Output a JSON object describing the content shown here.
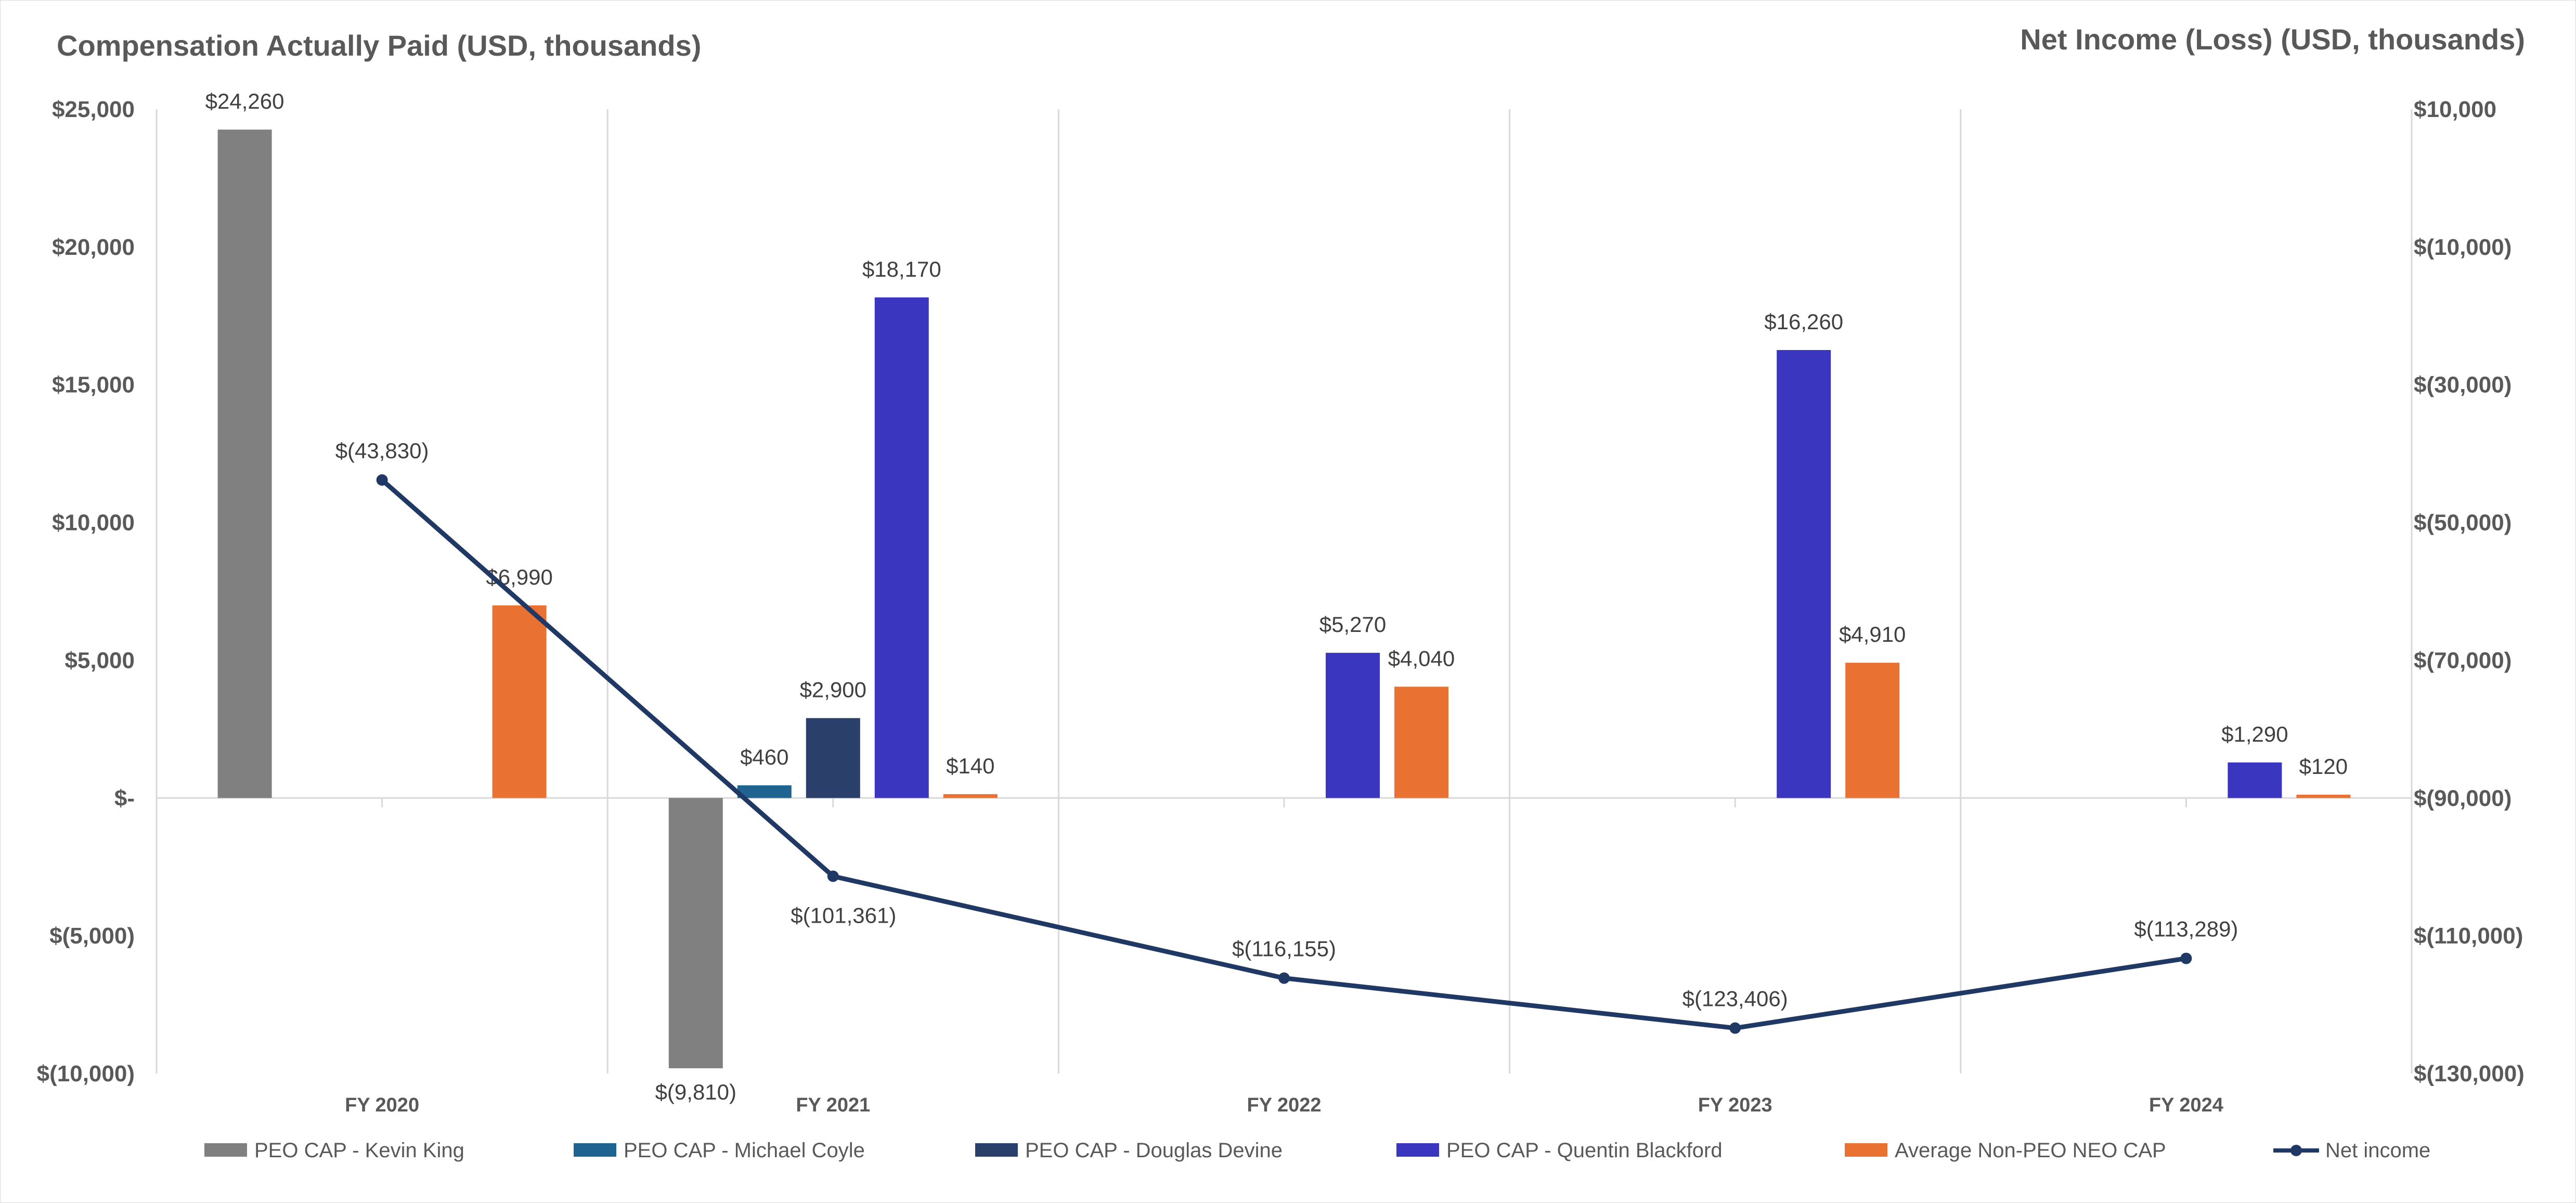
{
  "chart_data": {
    "type": "bar",
    "title_left": "Compensation Actually Paid (USD, thousands)",
    "title_right": "Net Income (Loss) (USD, thousands)",
    "categories": [
      "FY 2020",
      "FY 2021",
      "FY 2022",
      "FY 2023",
      "FY 2024"
    ],
    "ylim": [
      -10000,
      25000
    ],
    "y_ticks": [
      25000,
      20000,
      15000,
      10000,
      5000,
      0,
      -5000,
      -10000
    ],
    "y_tick_labels": [
      "$25,000",
      "$20,000",
      "$15,000",
      "$10,000",
      "$5,000",
      "$-",
      "$(5,000)",
      "$(10,000)"
    ],
    "y2lim": [
      -130000,
      10000
    ],
    "y2_ticks": [
      10000,
      -10000,
      -30000,
      -50000,
      -70000,
      -90000,
      -110000,
      -130000
    ],
    "y2_tick_labels": [
      "$10,000",
      "$(10,000)",
      "$(30,000)",
      "$(50,000)",
      "$(70,000)",
      "$(90,000)",
      "$(110,000)",
      "$(130,000)"
    ],
    "series": [
      {
        "name": "PEO CAP - Kevin King",
        "color": "#808080",
        "slot": 0,
        "values": [
          24260,
          -9810,
          null,
          null,
          null
        ],
        "labels": [
          "$24,260",
          "$(9,810)",
          null,
          null,
          null
        ]
      },
      {
        "name": "PEO CAP - Michael Coyle",
        "color": "#1f6391",
        "slot": 1,
        "values": [
          null,
          460,
          null,
          null,
          null
        ],
        "labels": [
          null,
          "$460",
          null,
          null,
          null
        ]
      },
      {
        "name": "PEO CAP - Douglas Devine",
        "color": "#2b3f6b",
        "slot": 2,
        "values": [
          null,
          2900,
          null,
          null,
          null
        ],
        "labels": [
          null,
          "$2,900",
          null,
          null,
          null
        ]
      },
      {
        "name": "PEO CAP - Quentin Blackford",
        "color": "#3a36c0",
        "slot": 3,
        "values": [
          null,
          18170,
          5270,
          16260,
          1290
        ],
        "labels": [
          null,
          "$18,170",
          "$5,270",
          "$16,260",
          "$1,290"
        ]
      },
      {
        "name": "Average Non-PEO NEO CAP",
        "color": "#e97132",
        "slot": 4,
        "values": [
          6990,
          140,
          4040,
          4910,
          120
        ],
        "labels": [
          "$6,990",
          "$140",
          "$4,040",
          "$4,910",
          "$120"
        ]
      }
    ],
    "line_series": {
      "name": "Net income",
      "color": "#203864",
      "axis": "right",
      "values": [
        -43830,
        -101361,
        -116155,
        -123406,
        -113289
      ],
      "labels": [
        "$(43,830)",
        "$(101,361)",
        "$(116,155)",
        "$(123,406)",
        "$(113,289)"
      ]
    },
    "legend": [
      "PEO CAP - Kevin King",
      "PEO CAP - Michael Coyle",
      "PEO CAP - Douglas Devine",
      "PEO CAP - Quentin Blackford",
      "Average Non-PEO NEO CAP",
      "Net income"
    ],
    "legend_position": "bottom"
  }
}
